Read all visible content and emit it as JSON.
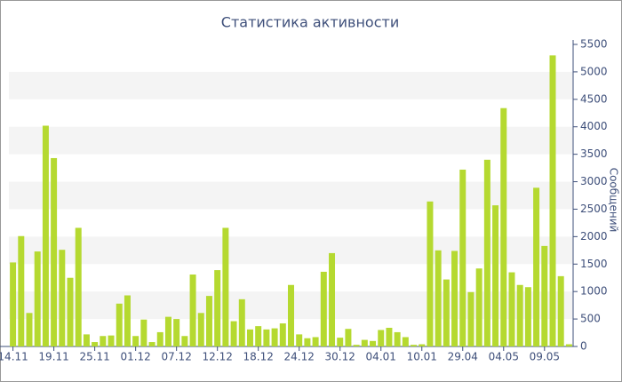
{
  "chart_data": {
    "type": "bar",
    "title": "Статистика активности",
    "y_label": "Сообщений",
    "categories": [
      "14.11",
      null,
      null,
      null,
      null,
      "19.11",
      null,
      null,
      null,
      null,
      "25.11",
      null,
      null,
      null,
      null,
      "01.12",
      null,
      null,
      null,
      null,
      "07.12",
      null,
      null,
      null,
      null,
      "12.12",
      null,
      null,
      null,
      null,
      "18.12",
      null,
      null,
      null,
      null,
      "24.12",
      null,
      null,
      null,
      null,
      "30.12",
      null,
      null,
      null,
      null,
      "04.01",
      null,
      null,
      null,
      null,
      "10.01",
      null,
      null,
      null,
      null,
      "29.04",
      null,
      null,
      null,
      null,
      "04.05",
      null,
      null,
      null,
      null,
      "09.05",
      null,
      null,
      null
    ],
    "values": [
      1530,
      2010,
      610,
      1730,
      4020,
      3430,
      1760,
      1250,
      2160,
      220,
      80,
      190,
      200,
      780,
      930,
      190,
      490,
      80,
      260,
      540,
      500,
      190,
      1310,
      610,
      920,
      1390,
      2160,
      460,
      860,
      310,
      370,
      310,
      330,
      420,
      1120,
      220,
      150,
      170,
      1360,
      1700,
      160,
      320,
      30,
      120,
      100,
      300,
      340,
      260,
      170,
      30,
      40,
      2640,
      1750,
      1220,
      1740,
      3220,
      990,
      1420,
      3400,
      2570,
      4340,
      1350,
      1120,
      1080,
      2890,
      1830,
      5300,
      1280,
      40
    ],
    "color": "#b5d930",
    "ylim": [
      0,
      5500
    ],
    "yticks": [
      0,
      500,
      1000,
      1500,
      2000,
      2500,
      3000,
      3500,
      4000,
      4500,
      5000,
      5500
    ],
    "grid": true
  }
}
